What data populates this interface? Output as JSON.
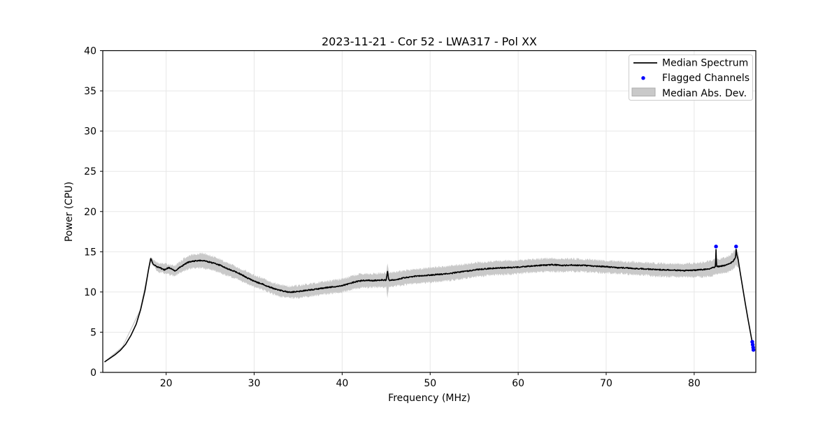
{
  "chart_data": {
    "type": "line",
    "title": "2023-11-21 - Cor 52 - LWA317 - Pol XX",
    "xlabel": "Frequency (MHz)",
    "ylabel": "Power (CPU)",
    "xlim": [
      12.8,
      87.0
    ],
    "ylim": [
      0,
      40
    ],
    "x_ticks": [
      20,
      30,
      40,
      50,
      60,
      70,
      80
    ],
    "y_ticks": [
      0,
      5,
      10,
      15,
      20,
      25,
      30,
      35,
      40
    ],
    "grid": true,
    "colors": {
      "median_line": "#000000",
      "flagged": "#0000ff",
      "band": "#c9c9c9",
      "gridline": "#e7e7e7",
      "frame": "#000000",
      "legend_edge": "#cccccc"
    },
    "legend": {
      "position": "upper right",
      "entries": [
        {
          "label": "Median Spectrum",
          "marker": "line"
        },
        {
          "label": "Flagged Channels",
          "marker": "dot"
        },
        {
          "label": "Median Abs. Dev.",
          "marker": "patch"
        }
      ]
    },
    "series": {
      "median_spectrum": {
        "name": "Median Spectrum",
        "control_points": [
          [
            13.0,
            1.3
          ],
          [
            13.6,
            1.75
          ],
          [
            14.2,
            2.2
          ],
          [
            14.8,
            2.75
          ],
          [
            15.4,
            3.5
          ],
          [
            16.0,
            4.6
          ],
          [
            16.6,
            6.0
          ],
          [
            17.1,
            7.8
          ],
          [
            17.6,
            10.2
          ],
          [
            18.0,
            12.8
          ],
          [
            18.25,
            14.2
          ],
          [
            18.5,
            13.5
          ],
          [
            18.9,
            13.15
          ],
          [
            19.4,
            12.95
          ],
          [
            19.8,
            12.75
          ],
          [
            20.3,
            13.05
          ],
          [
            20.7,
            12.8
          ],
          [
            21.0,
            12.6
          ],
          [
            21.4,
            12.95
          ],
          [
            21.9,
            13.3
          ],
          [
            22.4,
            13.65
          ],
          [
            23.0,
            13.8
          ],
          [
            23.6,
            13.9
          ],
          [
            24.3,
            13.9
          ],
          [
            24.8,
            13.75
          ],
          [
            25.3,
            13.6
          ],
          [
            25.8,
            13.45
          ],
          [
            26.3,
            13.25
          ],
          [
            26.8,
            12.95
          ],
          [
            27.3,
            12.75
          ],
          [
            27.8,
            12.55
          ],
          [
            28.3,
            12.3
          ],
          [
            28.8,
            12.0
          ],
          [
            29.3,
            11.7
          ],
          [
            29.8,
            11.45
          ],
          [
            30.3,
            11.2
          ],
          [
            30.8,
            11.05
          ],
          [
            31.3,
            10.8
          ],
          [
            31.8,
            10.6
          ],
          [
            32.3,
            10.4
          ],
          [
            32.8,
            10.25
          ],
          [
            33.3,
            10.1
          ],
          [
            33.8,
            10.0
          ],
          [
            34.4,
            10.0
          ],
          [
            35.0,
            10.05
          ],
          [
            35.6,
            10.15
          ],
          [
            36.2,
            10.25
          ],
          [
            36.8,
            10.3
          ],
          [
            37.4,
            10.4
          ],
          [
            38.0,
            10.5
          ],
          [
            38.6,
            10.6
          ],
          [
            39.2,
            10.65
          ],
          [
            39.8,
            10.75
          ],
          [
            40.4,
            10.9
          ],
          [
            41.0,
            11.1
          ],
          [
            41.6,
            11.3
          ],
          [
            42.2,
            11.4
          ],
          [
            42.8,
            11.45
          ],
          [
            43.4,
            11.4
          ],
          [
            44.0,
            11.45
          ],
          [
            44.6,
            11.5
          ],
          [
            45.0,
            11.45
          ],
          [
            45.15,
            12.6
          ],
          [
            45.3,
            11.45
          ],
          [
            45.8,
            11.5
          ],
          [
            46.4,
            11.6
          ],
          [
            47.0,
            11.75
          ],
          [
            47.6,
            11.85
          ],
          [
            48.2,
            11.95
          ],
          [
            48.8,
            12.0
          ],
          [
            49.4,
            12.05
          ],
          [
            50.0,
            12.1
          ],
          [
            50.6,
            12.15
          ],
          [
            51.2,
            12.2
          ],
          [
            51.8,
            12.25
          ],
          [
            52.4,
            12.3
          ],
          [
            53.0,
            12.45
          ],
          [
            53.6,
            12.5
          ],
          [
            54.2,
            12.6
          ],
          [
            54.8,
            12.7
          ],
          [
            55.4,
            12.8
          ],
          [
            56.0,
            12.85
          ],
          [
            56.6,
            12.9
          ],
          [
            57.2,
            12.95
          ],
          [
            57.8,
            13.0
          ],
          [
            58.4,
            13.0
          ],
          [
            59.0,
            13.05
          ],
          [
            59.6,
            13.05
          ],
          [
            60.2,
            13.1
          ],
          [
            60.8,
            13.15
          ],
          [
            61.4,
            13.2
          ],
          [
            62.0,
            13.25
          ],
          [
            62.6,
            13.3
          ],
          [
            63.2,
            13.35
          ],
          [
            63.8,
            13.4
          ],
          [
            64.4,
            13.35
          ],
          [
            65.0,
            13.3
          ],
          [
            65.6,
            13.3
          ],
          [
            66.2,
            13.35
          ],
          [
            66.8,
            13.3
          ],
          [
            67.4,
            13.3
          ],
          [
            68.0,
            13.25
          ],
          [
            68.6,
            13.2
          ],
          [
            69.2,
            13.2
          ],
          [
            69.8,
            13.15
          ],
          [
            70.4,
            13.1
          ],
          [
            71.0,
            13.05
          ],
          [
            71.6,
            13.0
          ],
          [
            72.2,
            13.0
          ],
          [
            72.8,
            12.95
          ],
          [
            73.4,
            12.9
          ],
          [
            74.0,
            12.9
          ],
          [
            74.6,
            12.85
          ],
          [
            75.2,
            12.8
          ],
          [
            75.8,
            12.8
          ],
          [
            76.4,
            12.75
          ],
          [
            77.0,
            12.75
          ],
          [
            77.6,
            12.7
          ],
          [
            78.2,
            12.7
          ],
          [
            78.8,
            12.65
          ],
          [
            79.4,
            12.7
          ],
          [
            80.0,
            12.7
          ],
          [
            80.6,
            12.75
          ],
          [
            81.2,
            12.8
          ],
          [
            81.8,
            12.9
          ],
          [
            82.3,
            13.1
          ],
          [
            82.42,
            13.15
          ],
          [
            82.48,
            15.3
          ],
          [
            82.54,
            13.15
          ],
          [
            83.0,
            13.2
          ],
          [
            83.5,
            13.3
          ],
          [
            84.0,
            13.5
          ],
          [
            84.4,
            13.8
          ],
          [
            84.7,
            14.3
          ],
          [
            84.76,
            15.3
          ],
          [
            84.85,
            14.6
          ],
          [
            85.0,
            14.0
          ],
          [
            85.2,
            12.6
          ],
          [
            85.5,
            10.6
          ],
          [
            85.8,
            8.6
          ],
          [
            86.1,
            6.7
          ],
          [
            86.4,
            4.9
          ],
          [
            86.6,
            3.7
          ],
          [
            86.75,
            2.9
          ]
        ],
        "noise_amplitude": 0.07,
        "noise_range": [
          18.5,
          84.6
        ]
      },
      "mad_band": {
        "name": "Median Abs. Dev.",
        "freq_range": [
          13.0,
          85.1
        ],
        "center_points": [
          [
            13,
            1.3
          ],
          [
            15,
            3.1
          ],
          [
            17,
            7.6
          ],
          [
            18.25,
            14.0
          ],
          [
            19,
            13.1
          ],
          [
            20,
            12.9
          ],
          [
            21,
            12.6
          ],
          [
            22,
            13.4
          ],
          [
            23,
            13.8
          ],
          [
            24,
            13.9
          ],
          [
            25,
            13.7
          ],
          [
            26,
            13.3
          ],
          [
            27,
            12.8
          ],
          [
            28,
            12.35
          ],
          [
            29,
            11.9
          ],
          [
            30,
            11.35
          ],
          [
            31,
            11.0
          ],
          [
            32,
            10.5
          ],
          [
            33,
            10.15
          ],
          [
            34,
            10.0
          ],
          [
            35,
            10.05
          ],
          [
            36,
            10.2
          ],
          [
            37,
            10.35
          ],
          [
            38,
            10.5
          ],
          [
            39,
            10.65
          ],
          [
            40,
            10.8
          ],
          [
            41,
            11.1
          ],
          [
            42,
            11.4
          ],
          [
            43,
            11.4
          ],
          [
            44,
            11.45
          ],
          [
            45,
            11.45
          ],
          [
            45.15,
            11.5
          ],
          [
            46,
            11.6
          ],
          [
            47,
            11.75
          ],
          [
            48,
            11.9
          ],
          [
            49,
            12.0
          ],
          [
            50,
            12.1
          ],
          [
            51,
            12.2
          ],
          [
            52,
            12.3
          ],
          [
            53,
            12.45
          ],
          [
            54,
            12.6
          ],
          [
            55,
            12.75
          ],
          [
            56,
            12.85
          ],
          [
            57,
            12.95
          ],
          [
            58,
            13.0
          ],
          [
            59,
            13.05
          ],
          [
            60,
            13.1
          ],
          [
            61,
            13.2
          ],
          [
            62,
            13.25
          ],
          [
            63,
            13.35
          ],
          [
            64,
            13.35
          ],
          [
            65,
            13.3
          ],
          [
            66,
            13.35
          ],
          [
            67,
            13.3
          ],
          [
            68,
            13.25
          ],
          [
            69,
            13.2
          ],
          [
            70,
            13.1
          ],
          [
            71,
            13.05
          ],
          [
            72,
            13.0
          ],
          [
            73,
            12.95
          ],
          [
            74,
            12.9
          ],
          [
            75,
            12.8
          ],
          [
            76,
            12.75
          ],
          [
            77,
            12.75
          ],
          [
            78,
            12.7
          ],
          [
            79,
            12.7
          ],
          [
            80,
            12.7
          ],
          [
            81,
            12.8
          ],
          [
            82,
            12.95
          ],
          [
            82.5,
            13.15
          ],
          [
            83,
            13.2
          ],
          [
            83.5,
            13.3
          ],
          [
            84,
            13.5
          ],
          [
            84.5,
            13.95
          ],
          [
            84.76,
            14.35
          ],
          [
            85.0,
            14.0
          ],
          [
            85.1,
            13.6
          ]
        ],
        "half_width_points": [
          [
            13,
            0.08
          ],
          [
            16,
            0.12
          ],
          [
            17,
            0.18
          ],
          [
            17.8,
            0.25
          ],
          [
            18.3,
            0.35
          ],
          [
            19,
            0.55
          ],
          [
            20,
            0.6
          ],
          [
            21,
            0.65
          ],
          [
            22,
            0.75
          ],
          [
            23,
            0.85
          ],
          [
            24,
            0.9
          ],
          [
            25,
            0.85
          ],
          [
            26,
            0.8
          ],
          [
            27,
            0.8
          ],
          [
            28,
            0.75
          ],
          [
            29,
            0.75
          ],
          [
            30,
            0.7
          ],
          [
            31,
            0.7
          ],
          [
            32,
            0.7
          ],
          [
            33,
            0.7
          ],
          [
            34,
            0.72
          ],
          [
            35,
            0.75
          ],
          [
            36,
            0.75
          ],
          [
            37,
            0.75
          ],
          [
            38,
            0.78
          ],
          [
            39,
            0.8
          ],
          [
            40,
            0.8
          ],
          [
            41,
            0.82
          ],
          [
            42,
            0.85
          ],
          [
            43,
            0.85
          ],
          [
            44,
            0.85
          ],
          [
            45,
            0.9
          ],
          [
            45.15,
            2.2
          ],
          [
            45.3,
            0.9
          ],
          [
            46,
            0.85
          ],
          [
            48,
            0.88
          ],
          [
            50,
            0.9
          ],
          [
            52,
            0.9
          ],
          [
            54,
            0.88
          ],
          [
            56,
            0.85
          ],
          [
            58,
            0.85
          ],
          [
            60,
            0.82
          ],
          [
            62,
            0.8
          ],
          [
            64,
            0.8
          ],
          [
            66,
            0.78
          ],
          [
            68,
            0.75
          ],
          [
            70,
            0.75
          ],
          [
            72,
            0.75
          ],
          [
            74,
            0.78
          ],
          [
            76,
            0.8
          ],
          [
            78,
            0.82
          ],
          [
            80,
            0.85
          ],
          [
            81,
            0.9
          ],
          [
            82,
            0.95
          ],
          [
            83,
            0.95
          ],
          [
            84,
            1.0
          ],
          [
            84.7,
            1.1
          ],
          [
            85.0,
            1.0
          ],
          [
            85.1,
            0.7
          ]
        ],
        "noise_amplitude": 0.16,
        "noise_range": [
          18.5,
          85.0
        ]
      },
      "flagged_channels": {
        "name": "Flagged Channels",
        "points": [
          [
            82.48,
            15.65
          ],
          [
            84.76,
            15.65
          ],
          [
            86.6,
            3.8
          ],
          [
            86.65,
            3.45
          ],
          [
            86.7,
            3.1
          ],
          [
            86.73,
            2.8
          ]
        ]
      }
    }
  }
}
